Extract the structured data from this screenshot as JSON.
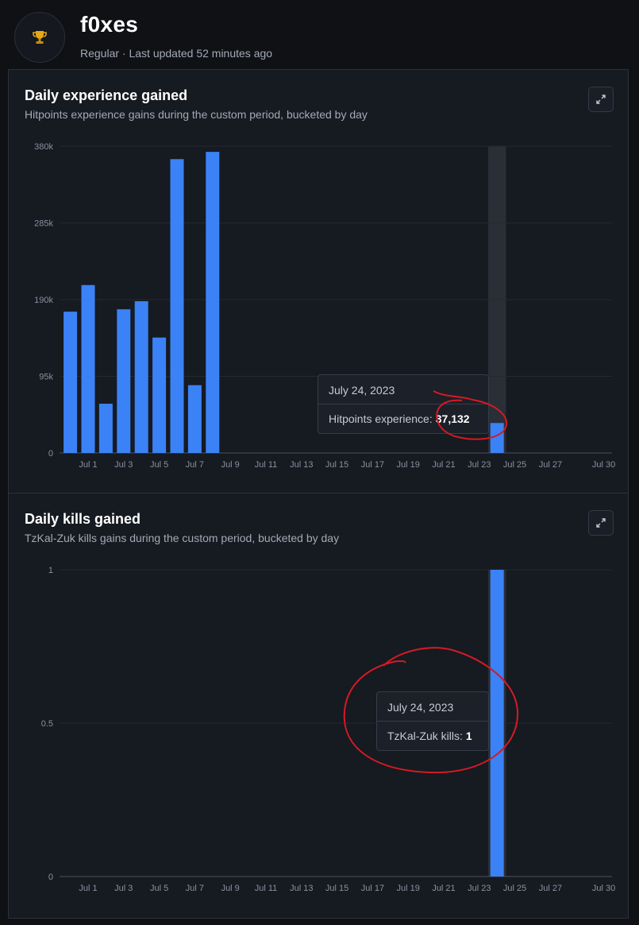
{
  "header": {
    "username": "f0xes",
    "subtitle": "Regular · Last updated 52 minutes ago",
    "avatar_icon": "trophy-icon"
  },
  "colors": {
    "bar": "#3b82f6",
    "hover_band": "#2a2e36",
    "annotation": "#d41a24"
  },
  "x_ticks": [
    "Jul 1",
    "Jul 3",
    "Jul 5",
    "Jul 7",
    "Jul 9",
    "Jul 11",
    "Jul 13",
    "Jul 15",
    "Jul 17",
    "Jul 19",
    "Jul 21",
    "Jul 23",
    "Jul 25",
    "Jul 27",
    "Jul 30"
  ],
  "charts": [
    {
      "title": "Daily experience gained",
      "subtitle": "Hitpoints experience gains during the custom period, bucketed by day",
      "tooltip": {
        "date": "July 24, 2023",
        "label": "Hitpoints experience:",
        "value": "37,132"
      }
    },
    {
      "title": "Daily kills gained",
      "subtitle": "TzKal-Zuk kills gains during the custom period, bucketed by day",
      "tooltip": {
        "date": "July 24, 2023",
        "label": "TzKal-Zuk kills:",
        "value": "1"
      }
    }
  ],
  "chart_data": [
    {
      "type": "bar",
      "title": "Daily experience gained",
      "x": [
        "2023-06-30",
        "2023-07-01",
        "2023-07-02",
        "2023-07-03",
        "2023-07-04",
        "2023-07-05",
        "2023-07-06",
        "2023-07-07",
        "2023-07-08",
        "2023-07-24"
      ],
      "values": [
        175000,
        208000,
        61000,
        178000,
        188000,
        143000,
        364000,
        84000,
        373000,
        37132
      ],
      "y_ticks": [
        "0",
        "95k",
        "190k",
        "285k",
        "380k"
      ],
      "ylim": [
        0,
        380000
      ],
      "highlight": "2023-07-24",
      "grid": true
    },
    {
      "type": "bar",
      "title": "Daily kills gained",
      "x": [
        "2023-07-24"
      ],
      "values": [
        1
      ],
      "y_ticks": [
        "0",
        "0.5",
        "1"
      ],
      "ylim": [
        0,
        1
      ],
      "highlight": "2023-07-24",
      "grid": true
    }
  ]
}
